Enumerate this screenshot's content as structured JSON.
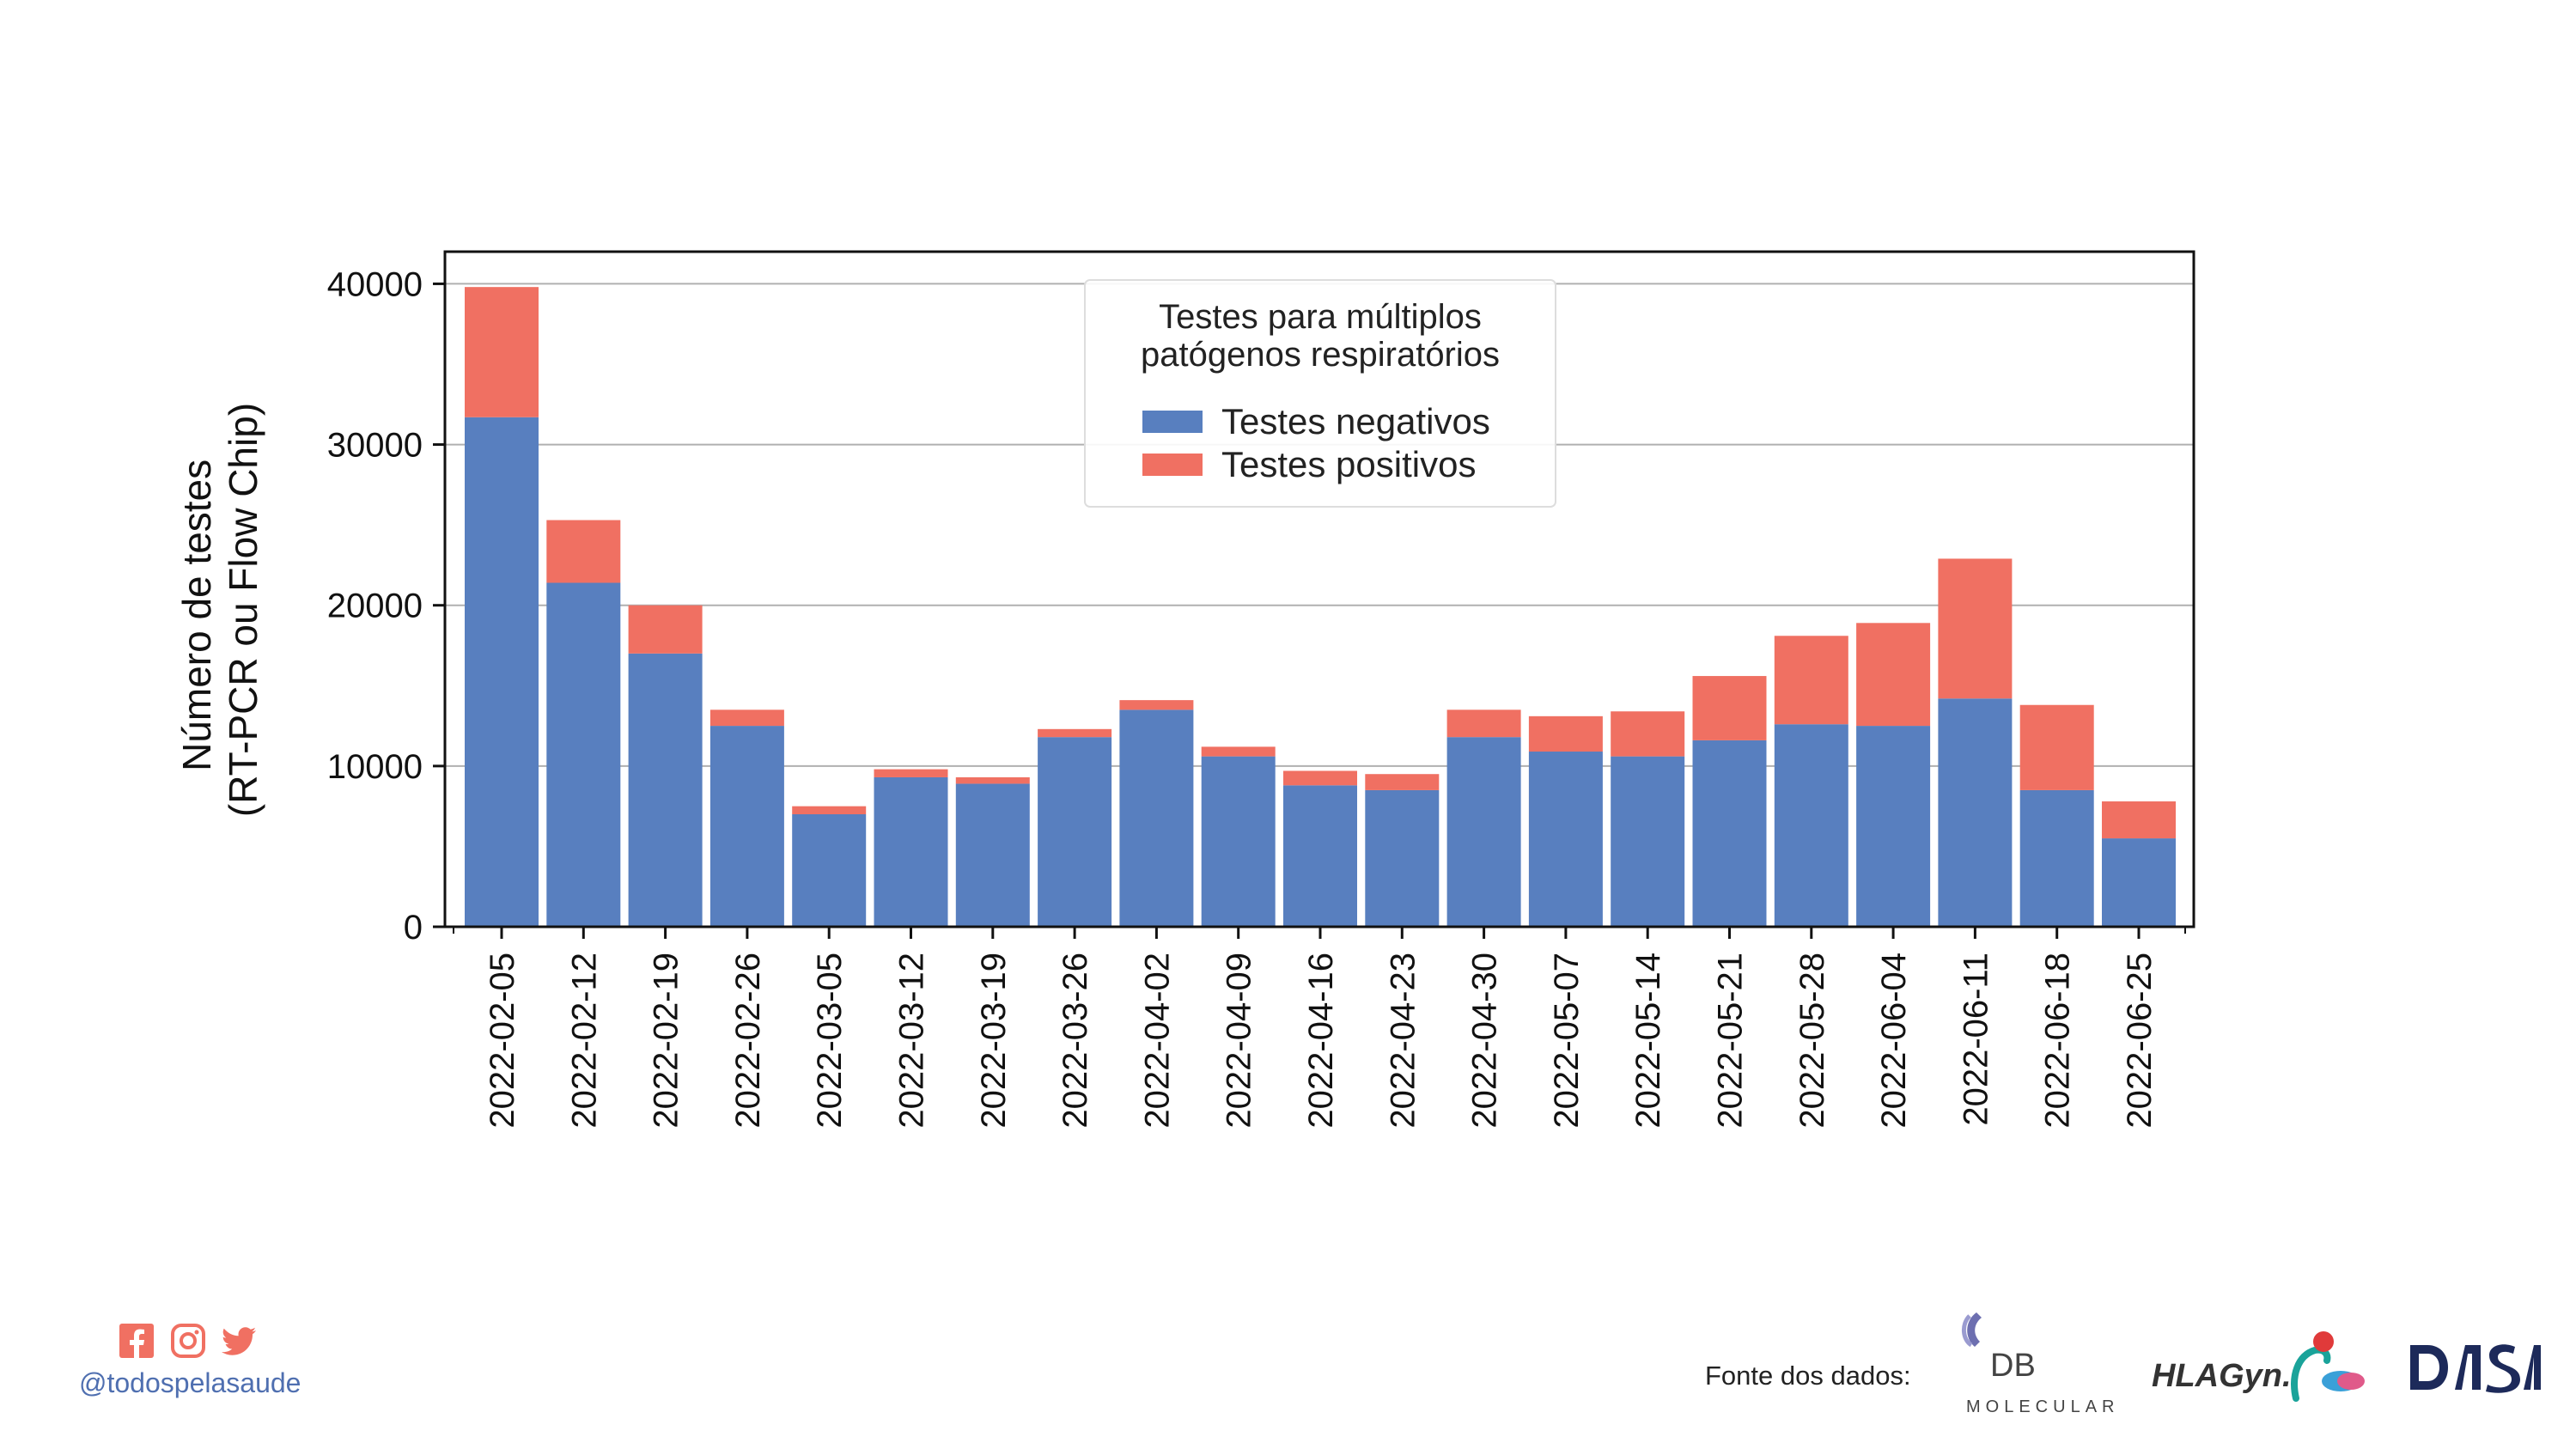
{
  "chart_data": {
    "type": "bar",
    "stacked": true,
    "categories": [
      "2022-02-05",
      "2022-02-12",
      "2022-02-19",
      "2022-02-26",
      "2022-03-05",
      "2022-03-12",
      "2022-03-19",
      "2022-03-26",
      "2022-04-02",
      "2022-04-09",
      "2022-04-16",
      "2022-04-23",
      "2022-04-30",
      "2022-05-07",
      "2022-05-14",
      "2022-05-21",
      "2022-05-28",
      "2022-06-04",
      "2022-06-11",
      "2022-06-18",
      "2022-06-25"
    ],
    "series": [
      {
        "name": "Testes negativos",
        "color": "#587fbf",
        "values": [
          31700,
          21400,
          17000,
          12500,
          7000,
          9300,
          8900,
          11800,
          13500,
          10600,
          8800,
          8500,
          11800,
          10900,
          10600,
          11600,
          12600,
          12500,
          14200,
          8500,
          5500
        ]
      },
      {
        "name": "Testes positivos",
        "color": "#f07062",
        "values": [
          8100,
          3900,
          3000,
          1000,
          500,
          500,
          400,
          500,
          600,
          600,
          900,
          1000,
          1700,
          2200,
          2800,
          4000,
          5500,
          6400,
          8700,
          5300,
          2300
        ]
      }
    ],
    "ylabel_line1": "Número de testes",
    "ylabel_line2": "(RT-PCR ou Flow Chip)",
    "ylim": [
      0,
      42000
    ],
    "yticks": [
      0,
      10000,
      20000,
      30000,
      40000
    ],
    "grid": "horizontal",
    "legend": {
      "title_line1": "Testes para múltiplos",
      "title_line2": "patógenos respiratórios",
      "placement": "top-center"
    }
  },
  "footer": {
    "social": [
      "facebook-icon",
      "instagram-icon",
      "twitter-icon"
    ],
    "handle": "@todospelasaude",
    "source_label": "Fonte dos dados:",
    "logos": {
      "db_molecular": {
        "top": "DB",
        "bottom": "MOLECULAR"
      },
      "hlagyn": "HLAGyn.",
      "dasa": "DASA"
    },
    "accent_color": "#f07062",
    "brand_color": "#4f6fb0"
  }
}
